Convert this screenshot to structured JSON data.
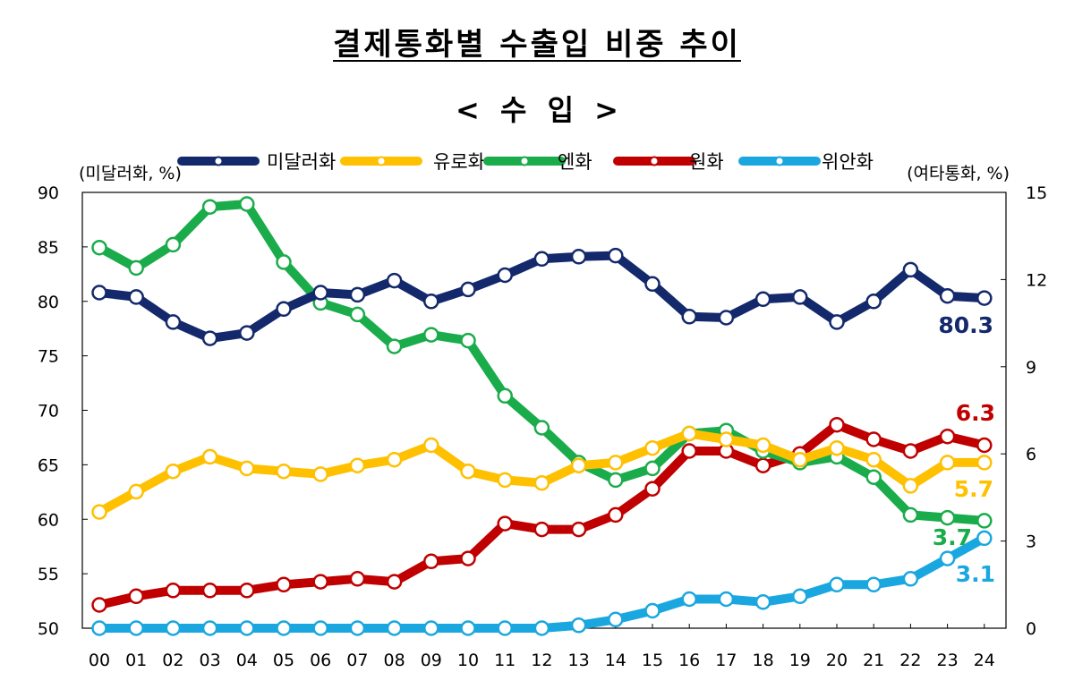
{
  "title": "결제통화별 수출입 비중 추이",
  "subtitle": "< 수  입 >",
  "chart_data": {
    "type": "line",
    "left_axis_label": "(미달러화, %)",
    "right_axis_label": "(여타통화, %)",
    "x": [
      "00",
      "01",
      "02",
      "03",
      "04",
      "05",
      "06",
      "07",
      "08",
      "09",
      "10",
      "11",
      "12",
      "13",
      "14",
      "15",
      "16",
      "17",
      "18",
      "19",
      "20",
      "21",
      "22",
      "23",
      "24"
    ],
    "y_left_ticks": [
      "90",
      "85",
      "80",
      "75",
      "70",
      "65",
      "60",
      "55",
      "50"
    ],
    "y_right_ticks": [
      "15",
      "12",
      "9",
      "6",
      "3",
      "0"
    ],
    "ylim_left": [
      50,
      90
    ],
    "ylim_right": [
      0,
      15
    ],
    "grid": false,
    "legend_position": "top",
    "series": [
      {
        "name": "미달러화",
        "axis": "left",
        "color": "#13296b",
        "values": [
          80.8,
          80.4,
          78.1,
          76.6,
          77.1,
          79.3,
          80.8,
          80.6,
          81.9,
          80.0,
          81.1,
          82.4,
          83.9,
          84.1,
          84.2,
          81.6,
          78.6,
          78.5,
          80.2,
          80.4,
          78.1,
          80.0,
          82.9,
          80.5,
          80.3
        ],
        "end_label": "80.3"
      },
      {
        "name": "유로화",
        "axis": "right",
        "color": "#ffc000",
        "values": [
          4.0,
          4.7,
          5.4,
          5.9,
          5.5,
          5.4,
          5.3,
          5.6,
          5.8,
          6.3,
          5.4,
          5.1,
          5.0,
          5.6,
          5.7,
          6.2,
          6.7,
          6.5,
          6.3,
          5.8,
          6.2,
          5.8,
          4.9,
          5.7,
          5.7
        ],
        "end_label": "5.7"
      },
      {
        "name": "엔화",
        "axis": "right",
        "color": "#1aac4b",
        "values": [
          13.1,
          12.4,
          13.2,
          14.5,
          14.6,
          12.6,
          11.2,
          10.8,
          9.7,
          10.1,
          9.9,
          8.0,
          6.9,
          5.7,
          5.1,
          5.5,
          6.7,
          6.8,
          6.1,
          5.7,
          5.9,
          5.2,
          3.9,
          3.8,
          3.7
        ],
        "end_label": "3.7"
      },
      {
        "name": "원화",
        "axis": "right",
        "color": "#c00000",
        "values": [
          0.8,
          1.1,
          1.3,
          1.3,
          1.3,
          1.5,
          1.6,
          1.7,
          1.6,
          2.3,
          2.4,
          3.6,
          3.4,
          3.4,
          3.9,
          4.8,
          6.1,
          6.1,
          5.6,
          6.0,
          7.0,
          6.5,
          6.1,
          6.6,
          6.3
        ],
        "end_label": "6.3"
      },
      {
        "name": "위안화",
        "axis": "right",
        "color": "#1aa7e0",
        "values": [
          0,
          0,
          0,
          0,
          0,
          0,
          0,
          0,
          0,
          0,
          0,
          0,
          0,
          0.1,
          0.3,
          0.6,
          1.0,
          1.0,
          0.9,
          1.1,
          1.5,
          1.5,
          1.7,
          2.4,
          3.1
        ],
        "end_label": "3.1"
      }
    ]
  }
}
